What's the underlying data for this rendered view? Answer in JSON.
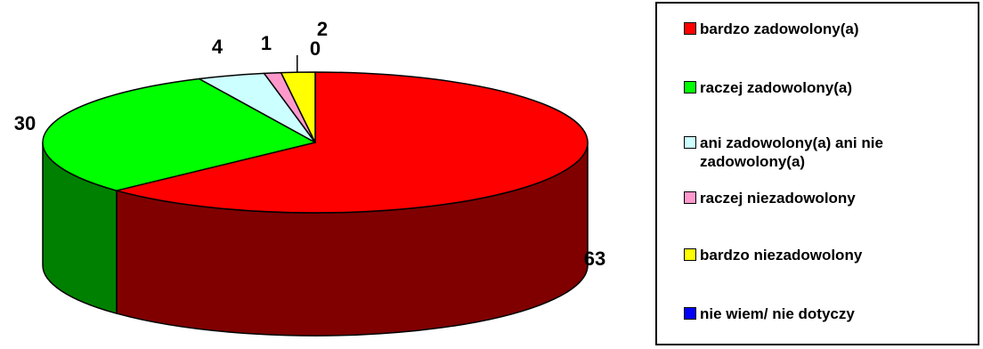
{
  "chart_data": {
    "type": "pie",
    "title": "",
    "three_d": true,
    "categories": [
      "bardzo zadowolony(a)",
      "raczej zadowolony(a)",
      "ani zadowolony(a) ani nie zadowolony(a)",
      "raczej niezadowolony",
      "bardzo niezadowolony",
      "nie wiem/ nie dotyczy"
    ],
    "values": [
      63,
      30,
      4,
      1,
      2,
      0
    ],
    "data_labels": [
      "63",
      "30",
      "4",
      "1",
      "2",
      "0"
    ],
    "colors": [
      "#ff0000",
      "#00ff00",
      "#ccffff",
      "#ff99cc",
      "#ffff00",
      "#0000ff"
    ],
    "side_colors": [
      "#800000",
      "#008000",
      "#669999",
      "#994c66",
      "#999900",
      "#000080"
    ],
    "legend_position": "right"
  },
  "legend": {
    "items": [
      {
        "label": "bardzo zadowolony(a)",
        "color": "#ff0000"
      },
      {
        "label": "raczej zadowolony(a)",
        "color": "#00ff00"
      },
      {
        "label": "ani zadowolony(a) ani nie zadowolony(a)",
        "color": "#ccffff"
      },
      {
        "label": "raczej niezadowolony",
        "color": "#ff99cc"
      },
      {
        "label": "bardzo niezadowolony",
        "color": "#ffff00"
      },
      {
        "label": "nie wiem/ nie dotyczy",
        "color": "#0000ff"
      }
    ]
  }
}
